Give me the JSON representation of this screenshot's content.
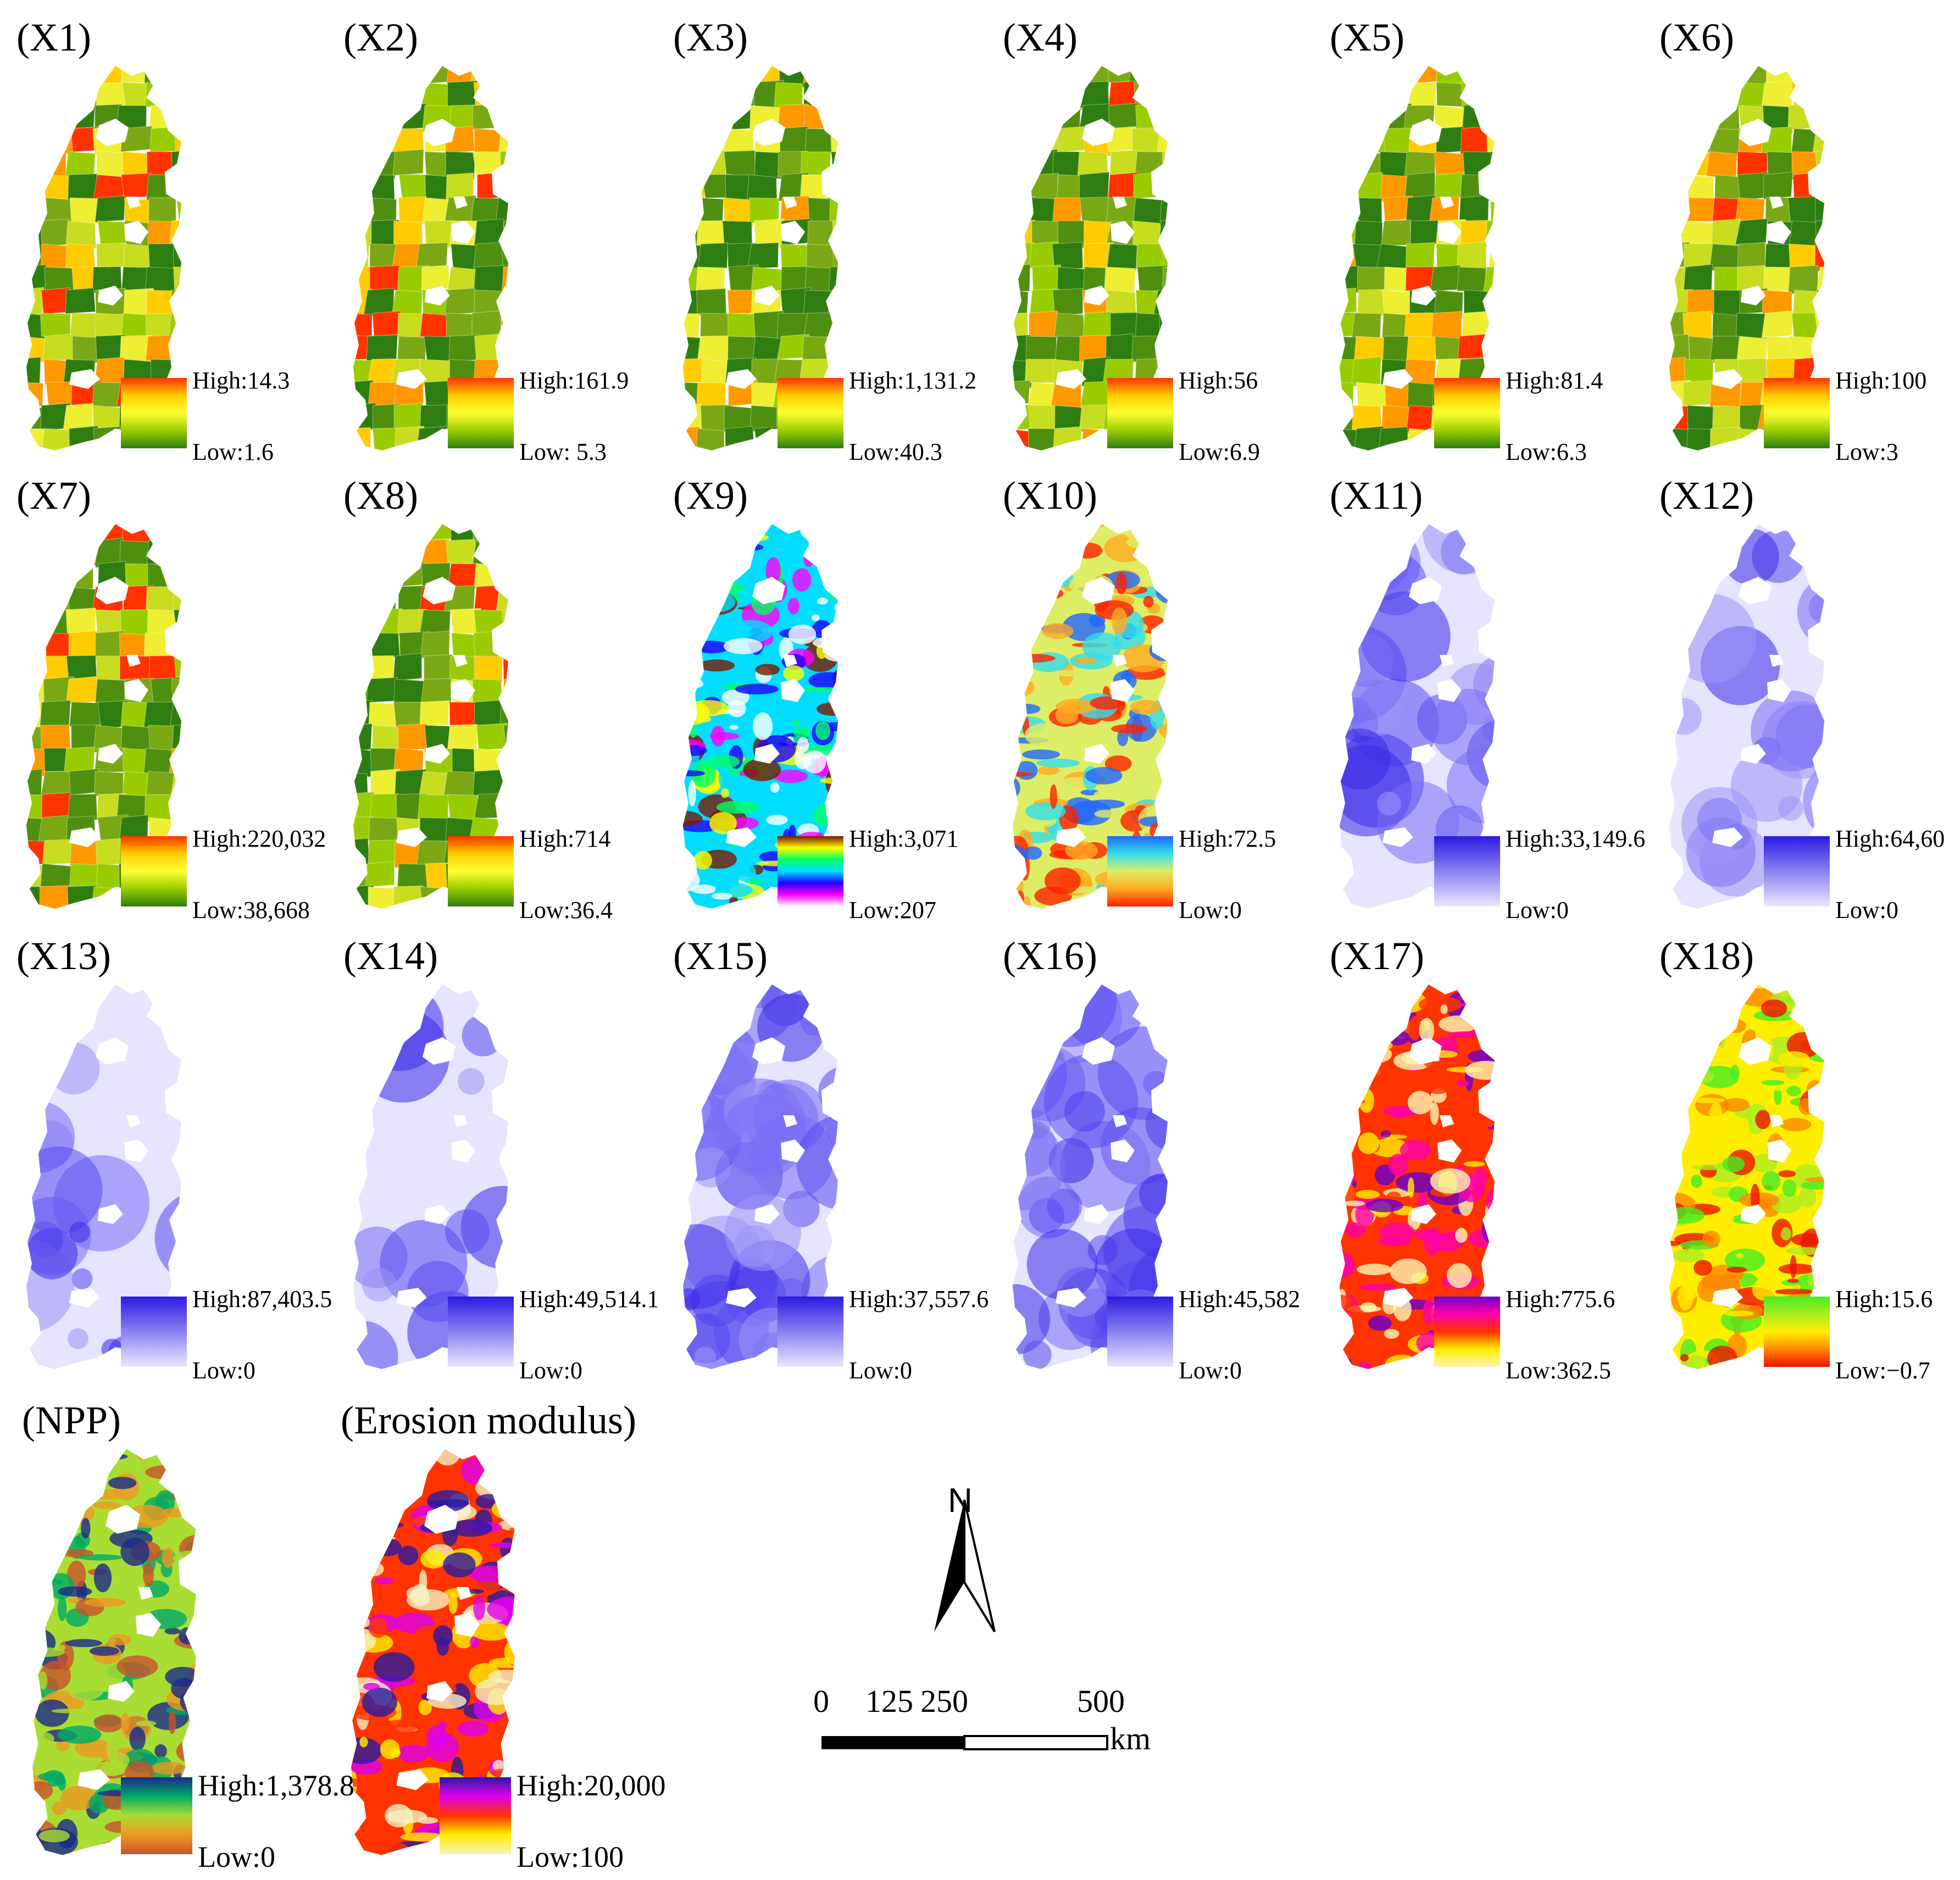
{
  "panels": [
    {
      "title": "(X1)",
      "high": "High:14.3",
      "low": "Low:1.6",
      "style": "choropleth",
      "ramp": [
        "#ff3300",
        "#ffcc00",
        "#ffff33",
        "#99cc00",
        "#2e7d10"
      ]
    },
    {
      "title": "(X2)",
      "high": "High:161.9",
      "low": "Low: 5.3",
      "style": "choropleth",
      "ramp": [
        "#ff3300",
        "#ffcc00",
        "#ffff33",
        "#99cc00",
        "#2e7d10"
      ]
    },
    {
      "title": "(X3)",
      "high": "High:1,131.2",
      "low": "Low:40.3",
      "style": "choropleth",
      "ramp": [
        "#ff3300",
        "#ffcc00",
        "#ffff33",
        "#99cc00",
        "#2e7d10"
      ]
    },
    {
      "title": "(X4)",
      "high": "High:56",
      "low": "Low:6.9",
      "style": "choropleth",
      "ramp": [
        "#ff3300",
        "#ffcc00",
        "#ffff33",
        "#99cc00",
        "#2e7d10"
      ]
    },
    {
      "title": "(X5)",
      "high": "High:81.4",
      "low": "Low:6.3",
      "style": "choropleth",
      "ramp": [
        "#ff3300",
        "#ffcc00",
        "#ffff33",
        "#99cc00",
        "#2e7d10"
      ]
    },
    {
      "title": "(X6)",
      "high": "High:100",
      "low": "Low:3",
      "style": "choropleth",
      "ramp": [
        "#ff3300",
        "#ffcc00",
        "#ffff33",
        "#99cc00",
        "#2e7d10"
      ]
    },
    {
      "title": "(X7)",
      "high": "High:220,032",
      "low": "Low:38,668",
      "style": "choropleth",
      "ramp": [
        "#ff3300",
        "#ffcc00",
        "#ffff33",
        "#99cc00",
        "#2e7d10"
      ]
    },
    {
      "title": "(X8)",
      "high": "High:714",
      "low": "Low:36.4",
      "style": "choropleth",
      "ramp": [
        "#ff3300",
        "#ffcc00",
        "#ffff33",
        "#99cc00",
        "#2e7d10"
      ]
    },
    {
      "title": "(X9)",
      "high": "High:3,071",
      "low": "Low:207",
      "style": "elevation",
      "ramp": [
        "#7a1a00",
        "#ffff00",
        "#00ff66",
        "#00ddff",
        "#2200ff",
        "#ff00ff",
        "#ffffff"
      ]
    },
    {
      "title": "(X10)",
      "high": "High:72.5",
      "low": "Low:0",
      "style": "slope",
      "ramp": [
        "#2266ff",
        "#33ddee",
        "#ddee66",
        "#ffaa22",
        "#ff2200"
      ]
    },
    {
      "title": "(X11)",
      "high": "High:33,149.6",
      "low": "Low:0",
      "style": "distance",
      "ramp": [
        "#2a1ae0",
        "#eae8ff"
      ]
    },
    {
      "title": "(X12)",
      "high": "High:64,60",
      "low": "Low:0",
      "style": "distance",
      "ramp": [
        "#2a1ae0",
        "#eae8ff"
      ]
    },
    {
      "title": "(X13)",
      "high": "High:87,403.5",
      "low": "Low:0",
      "style": "distance",
      "ramp": [
        "#2a1ae0",
        "#eae8ff"
      ]
    },
    {
      "title": "(X14)",
      "high": "High:49,514.1",
      "low": "Low:0",
      "style": "distance",
      "ramp": [
        "#2a1ae0",
        "#eae8ff"
      ]
    },
    {
      "title": "(X15)",
      "high": "High:37,557.6",
      "low": "Low:0",
      "style": "distance",
      "ramp": [
        "#2a1ae0",
        "#eae8ff"
      ]
    },
    {
      "title": "(X16)",
      "high": "High:45,582",
      "low": "Low:0",
      "style": "distance",
      "ramp": [
        "#2a1ae0",
        "#eae8ff"
      ]
    },
    {
      "title": "(X17)",
      "high": "High:775.6",
      "low": "Low:362.5",
      "style": "precip",
      "ramp": [
        "#6a00cc",
        "#ff00aa",
        "#ff3300",
        "#ffee00",
        "#fff6b0"
      ]
    },
    {
      "title": "(X18)",
      "high": "High:15.6",
      "low": "Low:−0.7",
      "style": "temp",
      "ramp": [
        "#44ee22",
        "#aaee22",
        "#ffee00",
        "#ff8800",
        "#ee1100"
      ]
    },
    {
      "title": "(NPP)",
      "high": "High:1,378.8",
      "low": "Low:0",
      "style": "npp",
      "ramp": [
        "#1a2a8a",
        "#00aa66",
        "#aadd33",
        "#ee9922",
        "#c9522a"
      ]
    },
    {
      "title": "(Erosion modulus)",
      "high": "High:20,000",
      "low": "Low:100",
      "style": "erosion",
      "ramp": [
        "#2a1aa0",
        "#dd00ee",
        "#ff3300",
        "#ffee00",
        "#f6f0c0"
      ]
    }
  ],
  "north_arrow": {
    "label": "N"
  },
  "scale_bar": {
    "ticks": [
      "0",
      "125",
      "250",
      "500"
    ],
    "unit": "km"
  }
}
